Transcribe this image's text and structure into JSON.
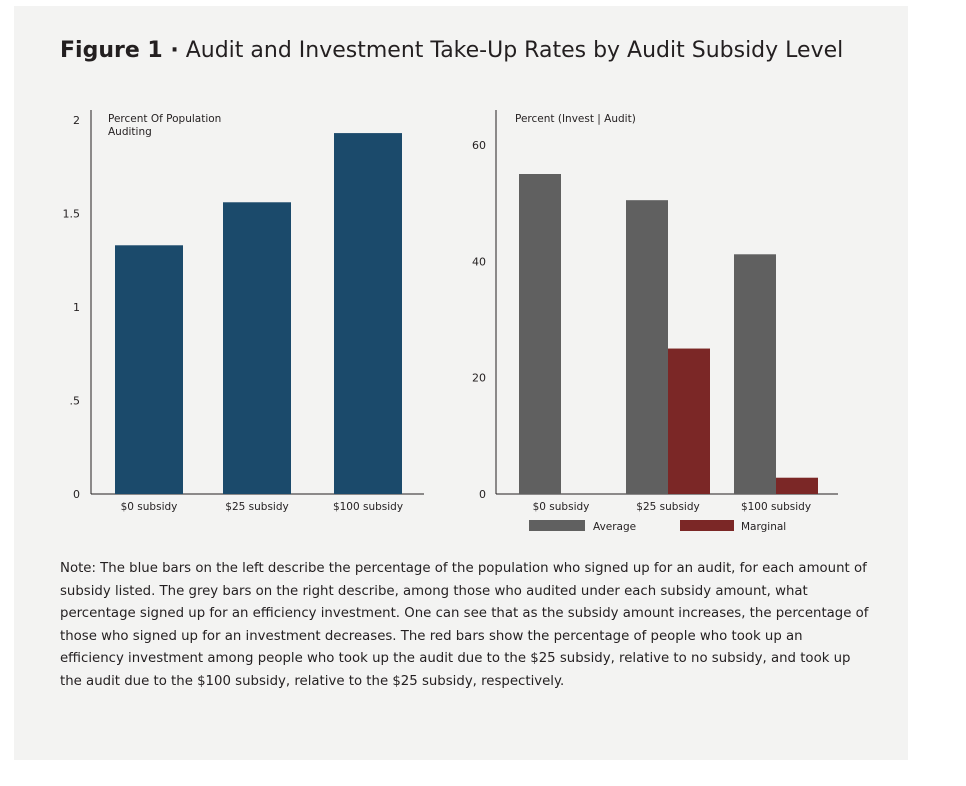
{
  "figure": {
    "label": "Figure 1 ·",
    "title": " Audit and Investment Take-Up Rates by Audit Subsidy Level"
  },
  "colors": {
    "blue": "#1b4a6b",
    "grey": "#606060",
    "red": "#7b2726"
  },
  "chart_data": [
    {
      "type": "bar",
      "ylabel": [
        "Percent Of Population",
        "Auditing"
      ],
      "categories": [
        "$0 subsidy",
        "$25 subsidy",
        "$100 subsidy"
      ],
      "series": [
        {
          "values": [
            1.33,
            1.56,
            1.93
          ]
        }
      ],
      "ylim": [
        0,
        2
      ],
      "yticks": [
        {
          "value": 0,
          "label": "0"
        },
        {
          "value": 0.5,
          "label": ".5"
        },
        {
          "value": 1,
          "label": "1"
        },
        {
          "value": 1.5,
          "label": "1.5"
        },
        {
          "value": 2,
          "label": "2"
        }
      ],
      "grid": false
    },
    {
      "type": "bar",
      "ylabel": "Percent (Invest | Audit)",
      "categories": [
        "$0 subsidy",
        "$25 subsidy",
        "$100 subsidy"
      ],
      "series": [
        {
          "name": "Average",
          "values": [
            55,
            50.5,
            41.2
          ]
        },
        {
          "name": "Marginal",
          "values": [
            null,
            25,
            2.8
          ]
        }
      ],
      "ylim": [
        0,
        66
      ],
      "yticks": [
        {
          "value": 0,
          "label": "0"
        },
        {
          "value": 20,
          "label": "20"
        },
        {
          "value": 40,
          "label": "40"
        },
        {
          "value": 60,
          "label": "60"
        }
      ],
      "legend_position": "bottom",
      "grid": false
    }
  ],
  "note": "Note: The blue bars on the left describe the percentage of the population who signed up for an audit, for each amount of subsidy listed. The grey bars on the right describe, among those who audited under each subsidy amount, what percentage signed up for an efficiency investment. One can see that as the subsidy amount increases, the percentage of those who signed up for an investment decreases. The red bars show the percentage of people who took up an efficiency investment among people who took up the audit due to the $25 subsidy, relative to no subsidy, and took up the audit due to the $100 subsidy, relative to the $25 subsidy, respectively."
}
